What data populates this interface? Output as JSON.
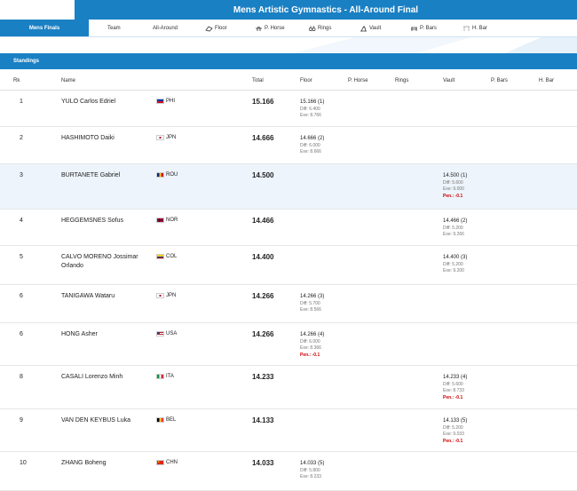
{
  "title": "Mens Artistic Gymnastics - All-Around Final",
  "tabs": [
    {
      "label": "Mens Finals",
      "icon": "",
      "active": true
    },
    {
      "label": "Team",
      "icon": ""
    },
    {
      "label": "All-Around",
      "icon": ""
    },
    {
      "label": "Floor",
      "icon": "floor-icon"
    },
    {
      "label": "P. Horse",
      "icon": "pommel-horse-icon"
    },
    {
      "label": "Rings",
      "icon": "rings-icon"
    },
    {
      "label": "Vault",
      "icon": "vault-icon"
    },
    {
      "label": "P. Bars",
      "icon": "parallel-bars-icon"
    },
    {
      "label": "H. Bar",
      "icon": "high-bar-icon"
    }
  ],
  "standings_label": "Standings",
  "columns": {
    "rk": "Rk",
    "name": "Name",
    "total": "Total",
    "floor": "Floor",
    "phorse": "P. Horse",
    "rings": "Rings",
    "vault": "Vault",
    "pbars": "P. Bars",
    "hbar": "H. Bar"
  },
  "rows": [
    {
      "rk": "1",
      "name": "YULO Carlos Edriel",
      "country": "PHI",
      "total": "15.166",
      "floor": {
        "score": "15.166 (1)",
        "diff": "Diff: 6.400",
        "exe": "Exe: 8.766",
        "pen": ""
      }
    },
    {
      "rk": "2",
      "name": "HASHIMOTO Daiki",
      "country": "JPN",
      "total": "14.666",
      "floor": {
        "score": "14.666 (2)",
        "diff": "Diff: 6.000",
        "exe": "Exe: 8.666",
        "pen": ""
      }
    },
    {
      "rk": "3",
      "name": "BURTANETE Gabriel",
      "country": "ROU",
      "total": "14.500",
      "vault": {
        "score": "14.500 (1)",
        "diff": "Diff: 5.600",
        "exe": "Exe: 9.000",
        "pen": "Pen.: -0.1"
      }
    },
    {
      "rk": "4",
      "name": "HEGGEMSNES Sofus",
      "country": "NOR",
      "total": "14.466",
      "vault": {
        "score": "14.466 (2)",
        "diff": "Diff: 5.200",
        "exe": "Exe: 9.266",
        "pen": ""
      }
    },
    {
      "rk": "5",
      "name": "CALVO MORENO Jossimar Orlando",
      "country": "COL",
      "total": "14.400",
      "vault": {
        "score": "14.400 (3)",
        "diff": "Diff: 5.200",
        "exe": "Exe: 9.200",
        "pen": ""
      }
    },
    {
      "rk": "6",
      "name": "TANIGAWA Wataru",
      "country": "JPN",
      "total": "14.266",
      "floor": {
        "score": "14.266 (3)",
        "diff": "Diff: 5.700",
        "exe": "Exe: 8.566",
        "pen": ""
      }
    },
    {
      "rk": "6",
      "name": "HONG Asher",
      "country": "USA",
      "total": "14.266",
      "floor": {
        "score": "14.266 (4)",
        "diff": "Diff: 6.000",
        "exe": "Exe: 8.366",
        "pen": "Pen.: -0.1"
      }
    },
    {
      "rk": "8",
      "name": "CASALI Lorenzo Minh",
      "country": "ITA",
      "total": "14.233",
      "vault": {
        "score": "14.233 (4)",
        "diff": "Diff: 5.600",
        "exe": "Exe: 8.733",
        "pen": "Pen.: -0.1"
      }
    },
    {
      "rk": "9",
      "name": "VAN DEN KEYBUS Luka",
      "country": "BEL",
      "total": "14.133",
      "vault": {
        "score": "14.133 (5)",
        "diff": "Diff: 5.200",
        "exe": "Exe: 9.033",
        "pen": "Pen.: -0.1"
      }
    },
    {
      "rk": "10",
      "name": "ZHANG Boheng",
      "country": "CHN",
      "total": "14.033",
      "floor": {
        "score": "14.033 (5)",
        "diff": "Diff: 5.800",
        "exe": "Exe: 8.233",
        "pen": ""
      }
    }
  ],
  "flag_colors": {
    "PHI": [
      "#0038a8",
      "#ce1126",
      "#ffffff"
    ],
    "JPN": [
      "#ffffff",
      "#bc002d"
    ],
    "ROU": [
      "#002b7f",
      "#fcd116",
      "#ce1126"
    ],
    "NOR": [
      "#ba0c2f",
      "#ffffff",
      "#00205b"
    ],
    "COL": [
      "#fcd116",
      "#003893",
      "#ce1126"
    ],
    "USA": [
      "#b22234",
      "#ffffff",
      "#3c3b6e"
    ],
    "ITA": [
      "#009246",
      "#ffffff",
      "#ce2b37"
    ],
    "BEL": [
      "#000000",
      "#fdda24",
      "#ef3340"
    ],
    "CHN": [
      "#de2910",
      "#ffde00"
    ]
  },
  "highlight_row": 2
}
